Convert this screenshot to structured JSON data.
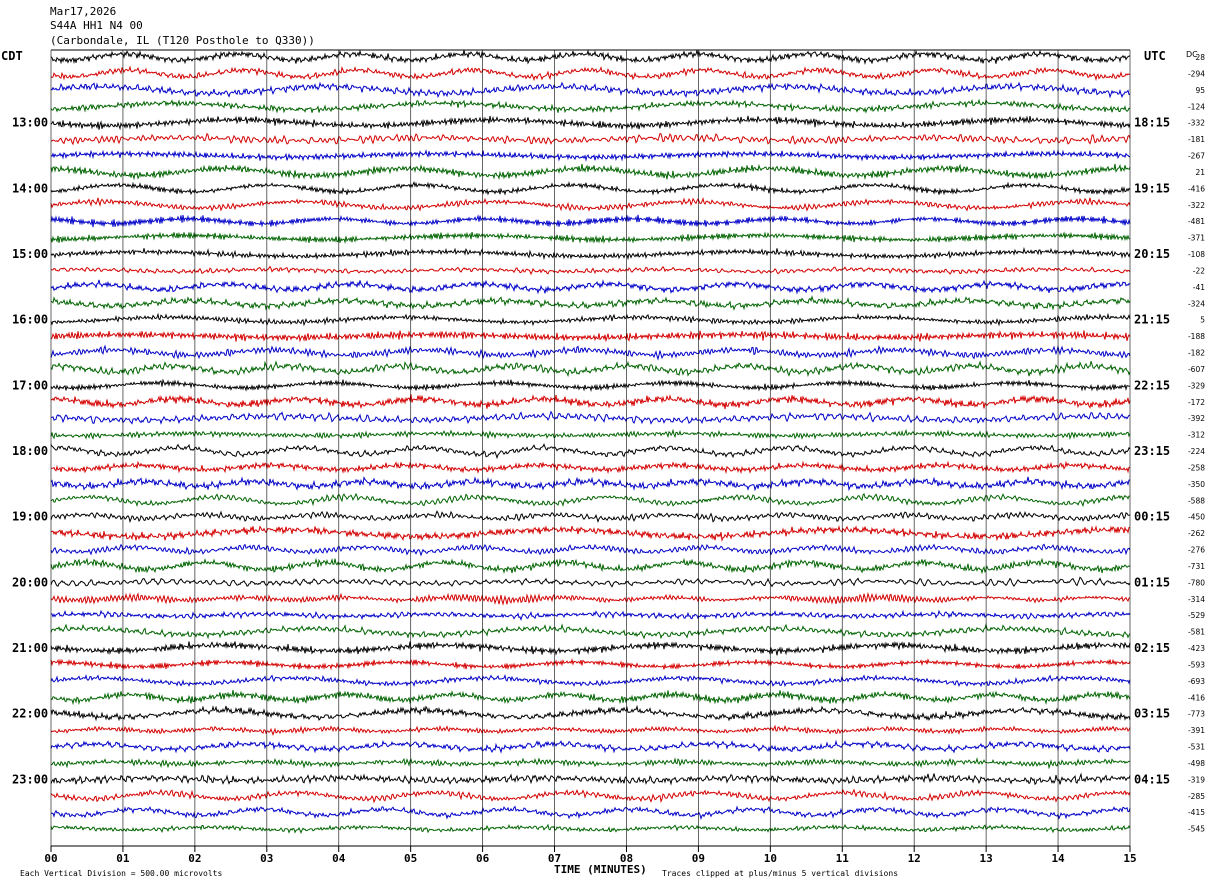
{
  "header": {
    "date": "Mar17,2026",
    "station": "S44A HH1 N4 00",
    "location": "(Carbondale, IL (T120 Posthole to Q330))"
  },
  "left_tz": "CDT",
  "right_tz": "UTC",
  "dc_label": "DC",
  "colors": {
    "trace_cycle": [
      "#000000",
      "#d40000",
      "#0000c8",
      "#006400"
    ],
    "grid": "#000000"
  },
  "footer": {
    "scale_note": "Each Vertical Division =  500.00 microvolts",
    "clip_note": "Traces clipped at plus/minus 5 vertical divisions"
  },
  "chart_data": {
    "type": "line",
    "title": "",
    "xlabel": "TIME (MINUTES)",
    "ylabel": "",
    "x_ticks": [
      "00",
      "01",
      "02",
      "03",
      "04",
      "05",
      "06",
      "07",
      "08",
      "09",
      "10",
      "11",
      "12",
      "13",
      "14",
      "15"
    ],
    "x_range": [
      0,
      15
    ],
    "rows_per_hour": 4,
    "left_hour_labels": [
      "13:00",
      "14:00",
      "15:00",
      "16:00",
      "17:00",
      "18:00",
      "19:00",
      "20:00",
      "21:00",
      "22:00",
      "23:00"
    ],
    "right_hour_labels": [
      "18:15",
      "19:15",
      "20:15",
      "21:15",
      "22:15",
      "23:15",
      "00:15",
      "01:15",
      "02:15",
      "03:15",
      "04:15"
    ],
    "first_labeled_row": 4,
    "dc_offsets": [
      "28",
      "-294",
      "95",
      "-124",
      "-332",
      "-181",
      "-267",
      "21",
      "-416",
      "-322",
      "-481",
      "-371",
      "-108",
      "-22",
      "-41",
      "-324",
      "5",
      "-188",
      "-182",
      "-607",
      "-329",
      "-172",
      "-392",
      "-312",
      "-224",
      "-258",
      "-350",
      "-588",
      "-450",
      "-262",
      "-276",
      "-731",
      "-780",
      "-314",
      "-529",
      "-581",
      "-423",
      "-593",
      "-693",
      "-416",
      "-773",
      "-391",
      "-531",
      "-498",
      "-319",
      "-285",
      "-415",
      "-545"
    ],
    "grid": true
  }
}
